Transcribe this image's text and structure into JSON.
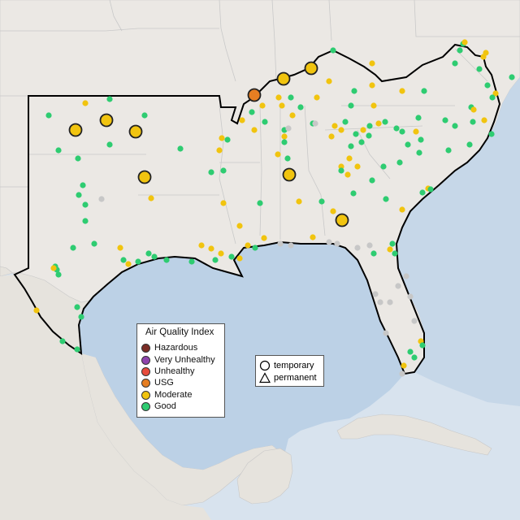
{
  "legend": {
    "title": "Air Quality Index",
    "categories": [
      {
        "label": "Hazardous",
        "color": "#7b2d26"
      },
      {
        "label": "Very Unhealthy",
        "color": "#8e44ad"
      },
      {
        "label": "Unhealthy",
        "color": "#e74c3c"
      },
      {
        "label": "USG",
        "color": "#e67e22"
      },
      {
        "label": "Moderate",
        "color": "#f1c40f"
      },
      {
        "label": "Good",
        "color": "#2ecc71"
      }
    ]
  },
  "shape_legend": {
    "items": [
      {
        "label": "temporary",
        "icon": "circle-icon"
      },
      {
        "label": "permanent",
        "icon": "triangle-icon"
      }
    ]
  },
  "colors": {
    "water": "#d8e3ee",
    "land": "#ece9e6",
    "gulf": "#b9cfe4",
    "border": "#000000",
    "inactive_sensor": "#c7c7c7"
  }
}
